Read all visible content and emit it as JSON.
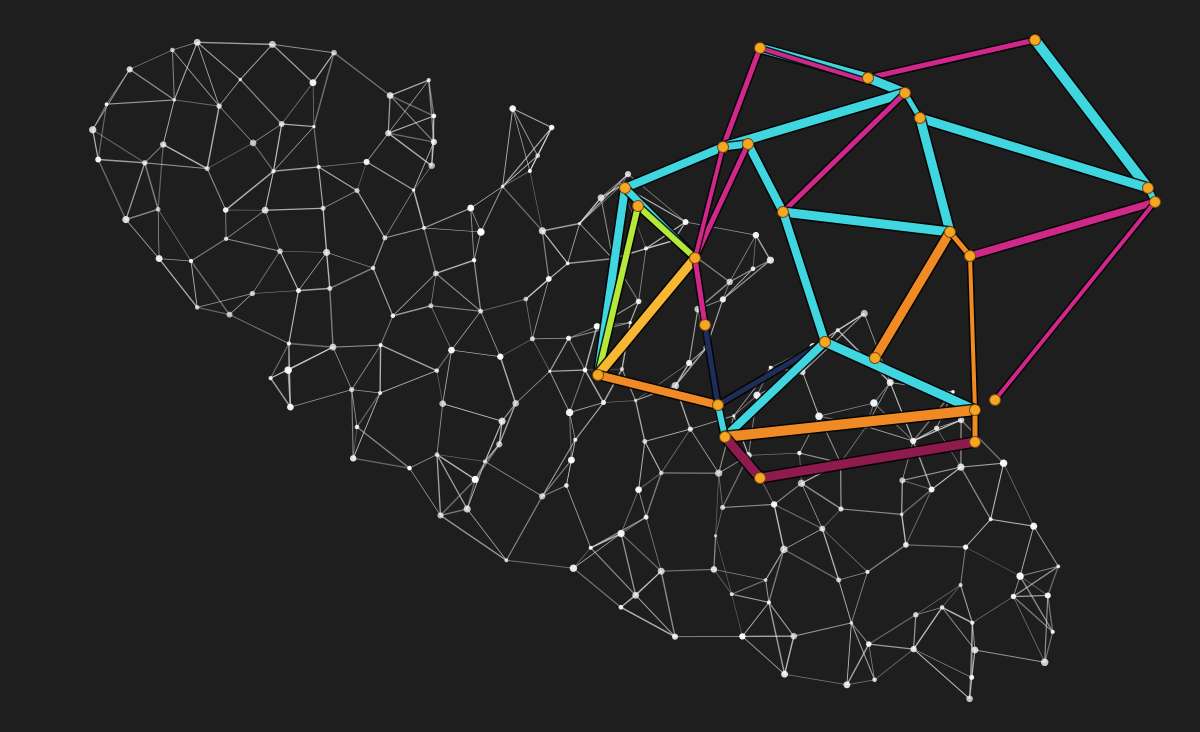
{
  "scene": {
    "background_color": "#1e1e1e",
    "wireframe_color": "#e8e8e8",
    "node_color": "#ffffff",
    "polyhedron_node_color": "#f5a623",
    "edge_colors": {
      "cyan": "#3fd6e0",
      "magenta": "#d0288a",
      "orange": "#f08a24",
      "yellow_orange": "#f7b733",
      "lime": "#b6e83a",
      "dark_blue": "#1e2e5a",
      "dark_magenta": "#8e1a4e"
    }
  }
}
